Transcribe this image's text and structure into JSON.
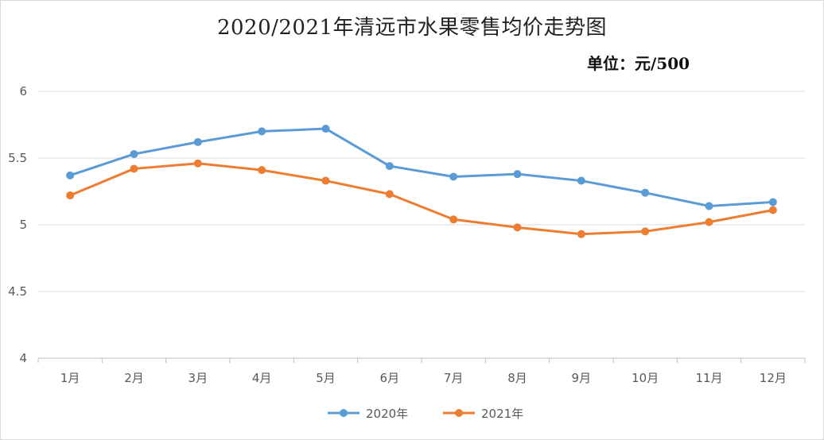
{
  "chart_data": {
    "type": "line",
    "title": "2020/2021年清远市水果零售均价走势图",
    "subtitle": "单位：元/500",
    "categories": [
      "1月",
      "2月",
      "3月",
      "4月",
      "5月",
      "6月",
      "7月",
      "8月",
      "9月",
      "10月",
      "11月",
      "12月"
    ],
    "ylim": [
      4,
      6
    ],
    "yticks": [
      "4",
      "4.5",
      "5",
      "5.5",
      "6"
    ],
    "grid": true,
    "legend_position": "bottom",
    "series": [
      {
        "name": "2020年",
        "color": "#5b9bd5",
        "values": [
          5.37,
          5.53,
          5.62,
          5.7,
          5.72,
          5.44,
          5.36,
          5.38,
          5.33,
          5.24,
          5.14,
          5.17
        ]
      },
      {
        "name": "2021年",
        "color": "#ed7d31",
        "values": [
          5.22,
          5.42,
          5.46,
          5.41,
          5.33,
          5.23,
          5.04,
          4.98,
          4.93,
          4.95,
          5.02,
          5.11
        ]
      }
    ]
  }
}
